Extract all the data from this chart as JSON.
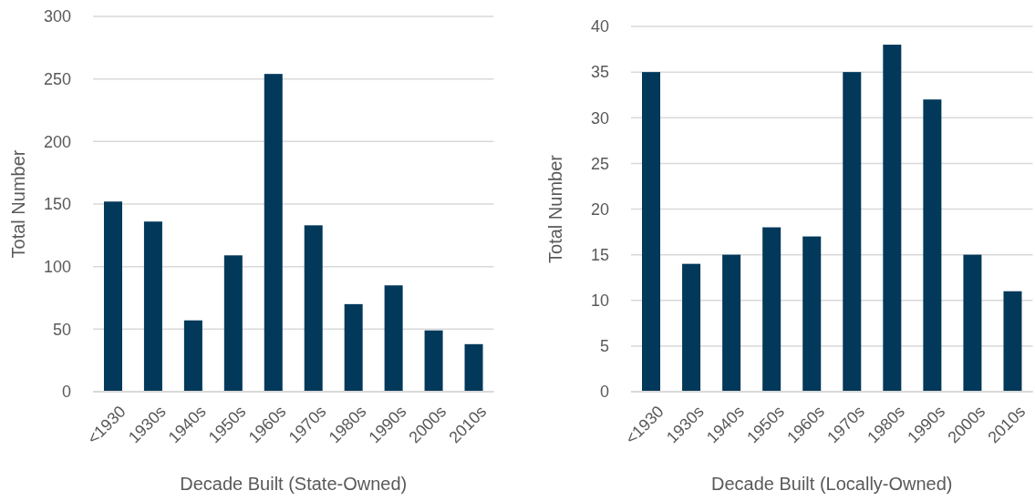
{
  "chart_data": [
    {
      "type": "bar",
      "categories": [
        "<1930",
        "1930s",
        "1940s",
        "1950s",
        "1960s",
        "1970s",
        "1980s",
        "1990s",
        "2000s",
        "2010s"
      ],
      "values": [
        152,
        136,
        57,
        109,
        254,
        133,
        70,
        85,
        49,
        38
      ],
      "color": "#02385a",
      "ylim": [
        0,
        300
      ],
      "yticks": [
        0,
        50,
        100,
        150,
        200,
        250,
        300
      ],
      "grid": "y",
      "xlabel": "Decade Built (State-Owned)",
      "ylabel": "Total Number"
    },
    {
      "type": "bar",
      "categories": [
        "<1930",
        "1930s",
        "1940s",
        "1950s",
        "1960s",
        "1970s",
        "1980s",
        "1990s",
        "2000s",
        "2010s"
      ],
      "values": [
        35,
        14,
        15,
        18,
        17,
        35,
        38,
        32,
        15,
        11
      ],
      "color": "#02385a",
      "ylim": [
        0,
        40
      ],
      "yticks": [
        0,
        5,
        10,
        15,
        20,
        25,
        30,
        35,
        40
      ],
      "grid": "y",
      "xlabel": "Decade Built (Locally-Owned)",
      "ylabel": "Total Number"
    }
  ]
}
